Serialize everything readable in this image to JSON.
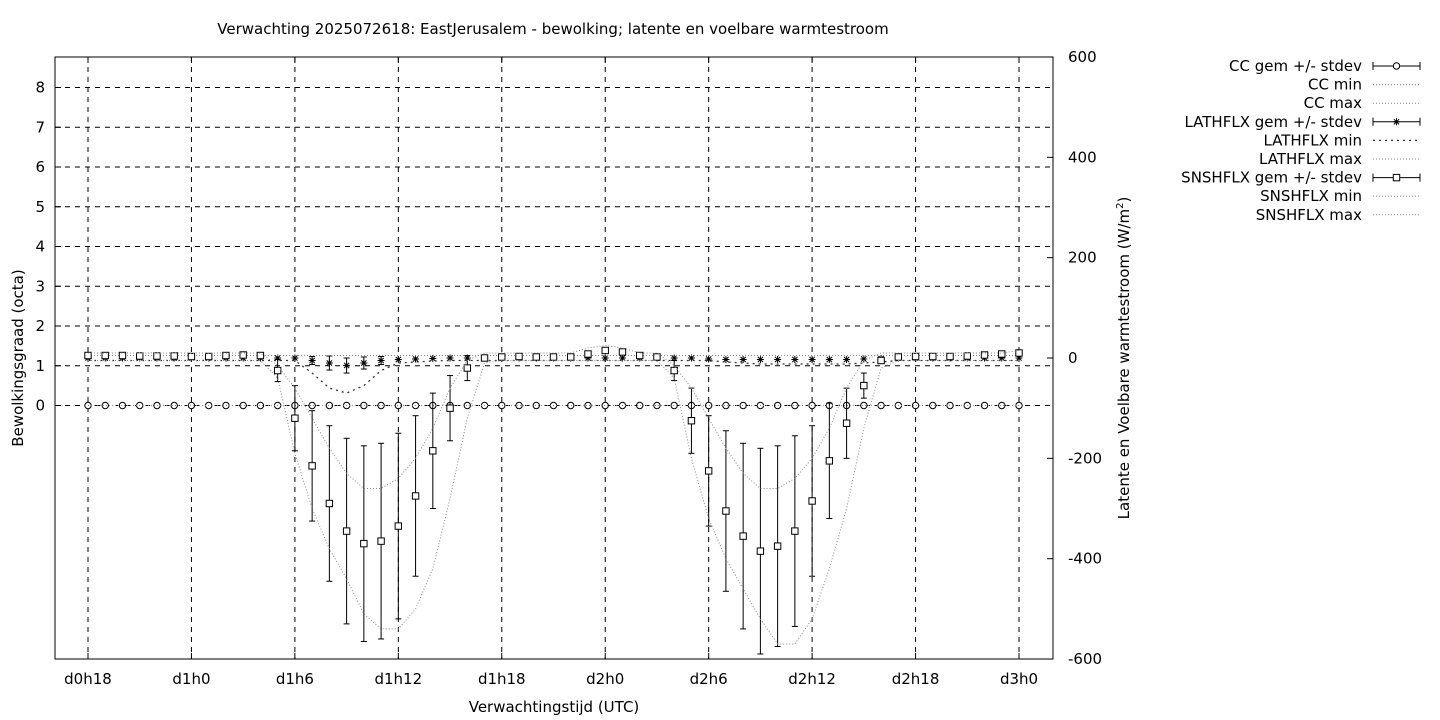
{
  "chart_data": {
    "type": "line",
    "title": "Verwachting 2025072618: EastJerusalem - bewolking; latente en voelbare warmtestroom",
    "xlabel": "Verwachtingstijd (UTC)",
    "ylabel": "Bewolkingsgraad (octa)",
    "y2label_main": "Latente en Voelbare warmtestroom (W/m",
    "y2label_sup": "2",
    "y2label_end": ")",
    "x_unit": "hours since d0h0",
    "xlim": [
      18,
      72
    ],
    "ylim": [
      -6.3,
      8.8
    ],
    "y2lim": [
      -600,
      600
    ],
    "xticks": [
      {
        "x": 18,
        "label": "d0h18"
      },
      {
        "x": 24,
        "label": "d1h0"
      },
      {
        "x": 30,
        "label": "d1h6"
      },
      {
        "x": 36,
        "label": "d1h12"
      },
      {
        "x": 42,
        "label": "d1h18"
      },
      {
        "x": 48,
        "label": "d2h0"
      },
      {
        "x": 54,
        "label": "d2h6"
      },
      {
        "x": 60,
        "label": "d2h12"
      },
      {
        "x": 66,
        "label": "d2h18"
      },
      {
        "x": 72,
        "label": "d3h0"
      }
    ],
    "yticks": [
      0,
      1,
      2,
      3,
      4,
      5,
      6,
      7,
      8
    ],
    "y2ticks": [
      600,
      400,
      200,
      0,
      -200,
      -400,
      -600
    ],
    "grid": true,
    "legend_position": "outside-right",
    "x": [
      18,
      19,
      20,
      21,
      22,
      23,
      24,
      25,
      26,
      27,
      28,
      29,
      30,
      31,
      32,
      33,
      34,
      35,
      36,
      37,
      38,
      39,
      40,
      41,
      42,
      43,
      44,
      45,
      46,
      47,
      48,
      49,
      50,
      51,
      52,
      53,
      54,
      55,
      56,
      57,
      58,
      59,
      60,
      61,
      62,
      63,
      64,
      65,
      66,
      67,
      68,
      69,
      70,
      71,
      72
    ],
    "series": [
      {
        "name": "CC gem +/- stdev",
        "axis": "y",
        "marker": "circle",
        "values": [
          0,
          0,
          0,
          0,
          0,
          0,
          0,
          0,
          0,
          0,
          0,
          0,
          0,
          0,
          0,
          0,
          0,
          0,
          0,
          0,
          0,
          0,
          0,
          0,
          0,
          0,
          0,
          0,
          0,
          0,
          0,
          0,
          0,
          0,
          0,
          0,
          0,
          0,
          0,
          0,
          0,
          0,
          0,
          0,
          0,
          0,
          0,
          0,
          0,
          0,
          0,
          0,
          0,
          0,
          0
        ]
      },
      {
        "name": "CC min",
        "axis": "y",
        "line": "dotted",
        "values": [
          0,
          0,
          0,
          0,
          0,
          0,
          0,
          0,
          0,
          0,
          0,
          0,
          0,
          0,
          0,
          0,
          0,
          0,
          0,
          0,
          0,
          0,
          0,
          0,
          0,
          0,
          0,
          0,
          0,
          0,
          0,
          0,
          0,
          0,
          0,
          0,
          0,
          0,
          0,
          0,
          0,
          0,
          0,
          0,
          0,
          0,
          0,
          0,
          0,
          0,
          0,
          0,
          0,
          0,
          0
        ]
      },
      {
        "name": "CC max",
        "axis": "y",
        "line": "dotted",
        "values": [
          0,
          0,
          0,
          0,
          0,
          0,
          0,
          0,
          0,
          0,
          0,
          0,
          0,
          0,
          0,
          0,
          0,
          0,
          0,
          0,
          0,
          0,
          0,
          0,
          0,
          0,
          0,
          0,
          0,
          0,
          0,
          0,
          0,
          0,
          0,
          0,
          0,
          0,
          0,
          0,
          0,
          0,
          0,
          0,
          0,
          0,
          0,
          0,
          0,
          0,
          0,
          0,
          0,
          0,
          0
        ]
      },
      {
        "name": "LATHFLX gem +/- stdev",
        "axis": "y2",
        "marker": "star",
        "values": [
          0,
          0,
          0,
          0,
          0,
          0,
          0,
          0,
          0,
          0,
          0,
          0,
          0,
          -5,
          -10,
          -15,
          -10,
          -5,
          -3,
          -2,
          -1,
          0,
          0,
          0,
          0,
          0,
          0,
          0,
          0,
          0,
          0,
          0,
          0,
          0,
          0,
          0,
          -2,
          -3,
          -3,
          -3,
          -3,
          -3,
          -3,
          -3,
          -3,
          -2,
          -1,
          0,
          0,
          0,
          0,
          0,
          0,
          0,
          0
        ],
        "stdev": [
          0,
          0,
          0,
          0,
          0,
          0,
          0,
          0,
          0,
          0,
          0,
          0,
          0,
          8,
          14,
          15,
          12,
          8,
          0,
          0,
          0,
          0,
          0,
          0,
          0,
          0,
          0,
          0,
          0,
          0,
          0,
          0,
          0,
          0,
          0,
          0,
          0,
          0,
          0,
          0,
          0,
          0,
          0,
          0,
          0,
          0,
          0,
          0,
          0,
          0,
          0,
          0,
          0,
          0,
          0
        ]
      },
      {
        "name": "LATHFLX min",
        "axis": "y2",
        "line": "dotted",
        "values": [
          -5,
          -5,
          -5,
          -5,
          -5,
          -5,
          -5,
          -5,
          -5,
          -5,
          -5,
          -5,
          -5,
          -30,
          -60,
          -70,
          -55,
          -25,
          -10,
          -8,
          -6,
          -5,
          -5,
          -5,
          -5,
          -5,
          -5,
          -5,
          -5,
          -5,
          -5,
          -5,
          -5,
          -5,
          -5,
          -5,
          -5,
          -8,
          -10,
          -12,
          -12,
          -12,
          -12,
          -12,
          -12,
          -10,
          -8,
          -5,
          -5,
          -5,
          -5,
          -5,
          -5,
          -5,
          -5
        ]
      },
      {
        "name": "LATHFLX max",
        "axis": "y2",
        "line": "dotted",
        "values": [
          5,
          5,
          5,
          5,
          5,
          5,
          5,
          5,
          5,
          5,
          5,
          5,
          5,
          5,
          5,
          5,
          5,
          5,
          5,
          5,
          5,
          5,
          5,
          5,
          5,
          5,
          5,
          5,
          5,
          5,
          5,
          5,
          5,
          5,
          5,
          5,
          5,
          5,
          5,
          5,
          5,
          5,
          5,
          5,
          5,
          5,
          5,
          5,
          5,
          5,
          5,
          5,
          5,
          5,
          5
        ]
      },
      {
        "name": "SNSHFLX gem +/- stdev",
        "axis": "y2",
        "marker": "square",
        "values": [
          5,
          5,
          5,
          4,
          4,
          4,
          3,
          3,
          5,
          6,
          5,
          -25,
          -120,
          -215,
          -290,
          -345,
          -370,
          -365,
          -335,
          -275,
          -185,
          -100,
          -20,
          0,
          2,
          3,
          2,
          2,
          2,
          8,
          15,
          12,
          5,
          2,
          -25,
          -125,
          -225,
          -305,
          -355,
          -385,
          -375,
          -345,
          -285,
          -205,
          -130,
          -55,
          -5,
          2,
          3,
          3,
          3,
          4,
          6,
          8,
          10
        ],
        "stdev": [
          0,
          0,
          0,
          0,
          0,
          0,
          0,
          0,
          0,
          0,
          0,
          22,
          65,
          110,
          155,
          185,
          195,
          195,
          185,
          160,
          115,
          65,
          25,
          0,
          0,
          0,
          0,
          0,
          0,
          0,
          0,
          0,
          0,
          0,
          20,
          65,
          110,
          160,
          185,
          205,
          200,
          190,
          150,
          115,
          70,
          25,
          0,
          0,
          0,
          0,
          0,
          0,
          0,
          0,
          0
        ]
      },
      {
        "name": "SNSHFLX min",
        "axis": "y2",
        "line": "dotted",
        "values": [
          -5,
          -5,
          -5,
          -5,
          -5,
          -5,
          -5,
          -5,
          -5,
          -5,
          -5,
          -40,
          -190,
          -300,
          -380,
          -440,
          -510,
          -540,
          -540,
          -500,
          -420,
          -280,
          -120,
          -10,
          -5,
          -5,
          -5,
          -5,
          -5,
          -5,
          -5,
          -5,
          -5,
          -5,
          -40,
          -200,
          -320,
          -400,
          -460,
          -520,
          -570,
          -570,
          -520,
          -420,
          -300,
          -140,
          -20,
          -5,
          -5,
          -5,
          -5,
          -5,
          -5,
          -5,
          -5
        ]
      },
      {
        "name": "SNSHFLX max",
        "axis": "y2",
        "line": "dotted",
        "values": [
          10,
          10,
          10,
          10,
          10,
          10,
          10,
          10,
          10,
          10,
          10,
          -15,
          -60,
          -120,
          -180,
          -230,
          -260,
          -260,
          -240,
          -200,
          -140,
          -60,
          -5,
          10,
          10,
          10,
          10,
          10,
          10,
          20,
          25,
          20,
          10,
          10,
          -15,
          -60,
          -120,
          -180,
          -230,
          -260,
          -260,
          -240,
          -200,
          -140,
          -60,
          -5,
          10,
          10,
          10,
          10,
          10,
          10,
          10,
          10,
          15
        ]
      }
    ]
  }
}
